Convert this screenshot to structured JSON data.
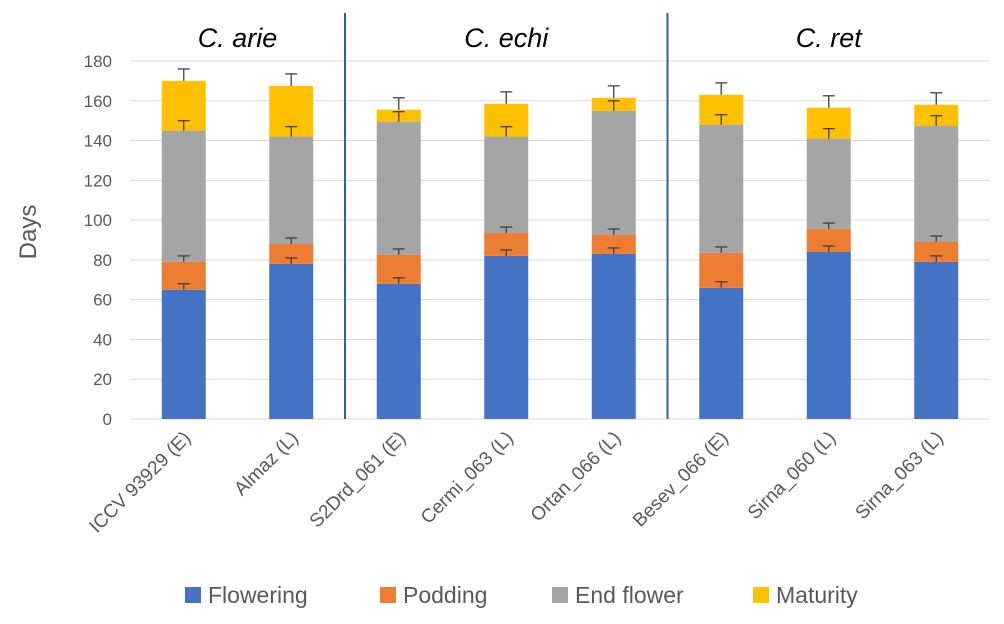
{
  "chart_data": {
    "type": "bar",
    "stacked": true,
    "title": "",
    "xlabel": "",
    "ylabel": "Days",
    "ylim": [
      0,
      180
    ],
    "ytick_step": 20,
    "grid": true,
    "legend_position": "bottom",
    "categories": [
      "ICCV 93929 (E)",
      "Almaz (L)",
      "S2Drd_061 (E)",
      "Cermi_063 (L)",
      "Ortan_066 (L)",
      "Besev_066 (E)",
      "Sirna_060 (L)",
      "Sirna_063 (L)"
    ],
    "groups": [
      {
        "label": "C. arie",
        "category_indices": [
          0,
          1
        ]
      },
      {
        "label": "C. echi",
        "category_indices": [
          2,
          3,
          4
        ]
      },
      {
        "label": "C. ret",
        "category_indices": [
          5,
          6,
          7
        ]
      }
    ],
    "series": [
      {
        "name": "Flowering",
        "color": "#4472c4",
        "values": [
          65,
          78,
          68,
          82,
          83,
          66,
          84,
          79
        ],
        "error": [
          3,
          3,
          3,
          3,
          3,
          3,
          3,
          3
        ]
      },
      {
        "name": "Podding",
        "color": "#ed7d31",
        "values": [
          14,
          10,
          14.5,
          11.5,
          9.5,
          17.5,
          11.5,
          10
        ],
        "error": [
          3,
          3,
          3,
          3,
          3,
          3,
          3,
          3
        ]
      },
      {
        "name": "End flower",
        "color": "#a5a5a5",
        "values": [
          66,
          54,
          67,
          48.5,
          62.5,
          64.5,
          45.5,
          58.5
        ],
        "error": [
          5,
          5,
          5,
          5,
          5,
          5,
          5,
          5
        ]
      },
      {
        "name": "Maturity",
        "color": "#ffc000",
        "values": [
          25,
          25.5,
          6,
          16.5,
          6.5,
          15,
          15.5,
          10.5
        ],
        "error": [
          6,
          6,
          6,
          6,
          6,
          6,
          6,
          6
        ]
      }
    ]
  }
}
